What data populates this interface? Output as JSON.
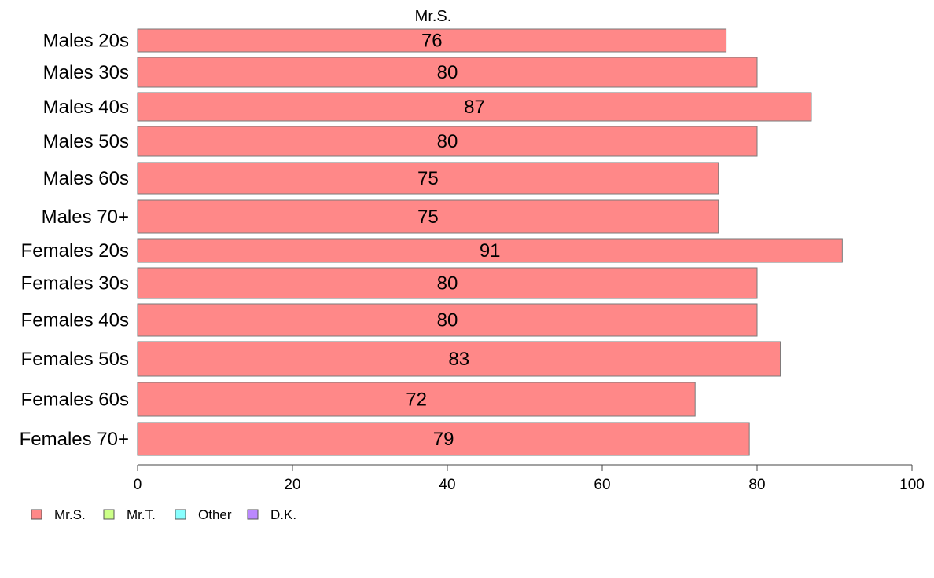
{
  "chart_data": {
    "type": "bar",
    "orientation": "horizontal",
    "title": "Mr.S.",
    "categories": [
      "Males 20s",
      "Males 30s",
      "Males 40s",
      "Males 50s",
      "Males 60s",
      "Males 70+",
      "Females 20s",
      "Females 30s",
      "Females 40s",
      "Females 50s",
      "Females 60s",
      "Females 70+"
    ],
    "series": [
      {
        "name": "Mr.S.",
        "color": "#ff8888",
        "values": [
          76,
          80,
          87,
          80,
          75,
          75,
          91,
          80,
          80,
          83,
          72,
          79
        ]
      }
    ],
    "data_labels": [
      "76",
      "80",
      "87",
      "80",
      "75",
      "75",
      "91",
      "80",
      "80",
      "83",
      "72",
      "79"
    ],
    "xlim": [
      0,
      100
    ],
    "xticks": [
      0,
      20,
      40,
      60,
      80,
      100
    ],
    "xtick_labels": [
      "0",
      "20",
      "40",
      "60",
      "80",
      "100"
    ],
    "grid": false,
    "legend_position": "bottom-left",
    "legend": [
      {
        "label": "Mr.S.",
        "color": "#ff8888"
      },
      {
        "label": "Mr.T.",
        "color": "#ccff88"
      },
      {
        "label": "Other",
        "color": "#88ffff"
      },
      {
        "label": "D.K.",
        "color": "#bb88ff"
      }
    ]
  }
}
